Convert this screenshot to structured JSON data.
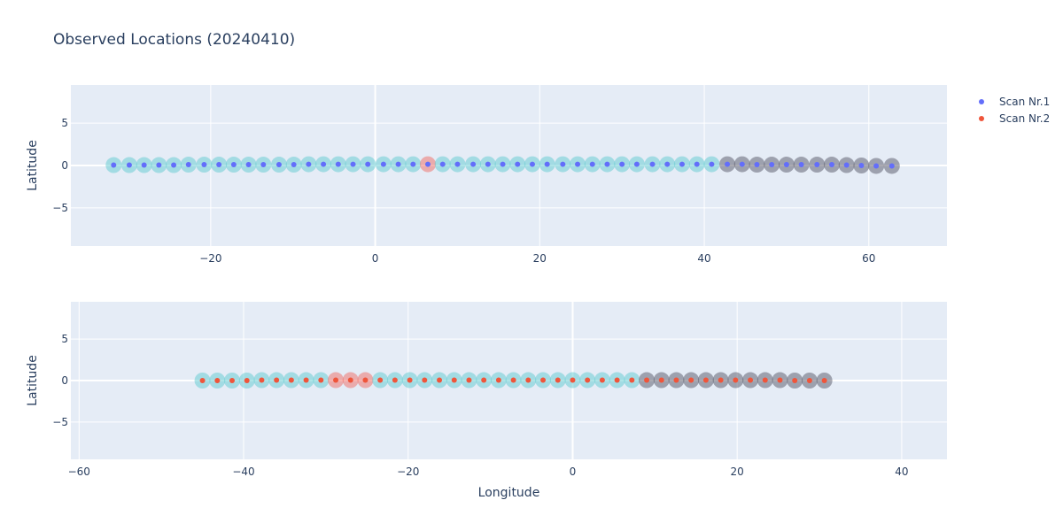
{
  "chart_data": {
    "type": "scatter",
    "title": "Observed Locations (20240410)",
    "grid": true,
    "legend_placement": "top-right",
    "legend": [
      {
        "name": "Scan Nr.1",
        "color": "#636efa"
      },
      {
        "name": "Scan Nr.2",
        "color": "#ef553b"
      }
    ],
    "halo_colors": {
      "cyan": "#5fc9d0",
      "red": "#ef6a62",
      "dark": "#555566"
    },
    "panels": [
      {
        "xlabel": "",
        "ylabel": "Latitude",
        "xlim": [
          -37,
          69.5
        ],
        "ylim": [
          -9.5,
          9.5
        ],
        "xticks": [
          -20,
          0,
          20,
          40,
          60
        ],
        "yticks": [
          -5,
          0,
          5
        ],
        "point_color": "#636efa",
        "x": [
          -31.8,
          -29.9,
          -28.1,
          -26.3,
          -24.5,
          -22.7,
          -20.8,
          -19.0,
          -17.2,
          -15.4,
          -13.6,
          -11.7,
          -9.9,
          -8.1,
          -6.3,
          -4.5,
          -2.7,
          -0.9,
          1.0,
          2.8,
          4.6,
          6.4,
          8.2,
          10.0,
          11.9,
          13.7,
          15.5,
          17.3,
          19.1,
          20.9,
          22.8,
          24.6,
          26.4,
          28.2,
          30.0,
          31.8,
          33.7,
          35.5,
          37.3,
          39.1,
          40.9,
          42.8,
          44.6,
          46.4,
          48.2,
          50.0,
          51.8,
          53.7,
          55.5,
          57.3,
          59.1,
          60.9,
          62.8
        ],
        "y": [
          0.05,
          0.05,
          0.05,
          0.05,
          0.05,
          0.1,
          0.1,
          0.1,
          0.1,
          0.1,
          0.1,
          0.1,
          0.1,
          0.15,
          0.15,
          0.15,
          0.15,
          0.15,
          0.15,
          0.15,
          0.15,
          0.15,
          0.15,
          0.15,
          0.15,
          0.15,
          0.15,
          0.15,
          0.15,
          0.15,
          0.15,
          0.15,
          0.15,
          0.15,
          0.15,
          0.15,
          0.15,
          0.15,
          0.15,
          0.15,
          0.15,
          0.15,
          0.15,
          0.1,
          0.1,
          0.1,
          0.1,
          0.1,
          0.1,
          0.05,
          0.0,
          -0.05,
          -0.05
        ],
        "halo": [
          "cyan",
          "cyan",
          "cyan",
          "cyan",
          "cyan",
          "cyan",
          "cyan",
          "cyan",
          "cyan",
          "cyan",
          "cyan",
          "cyan",
          "cyan",
          "cyan",
          "cyan",
          "cyan",
          "cyan",
          "cyan",
          "cyan",
          "cyan",
          "cyan",
          "red",
          "cyan",
          "cyan",
          "cyan",
          "cyan",
          "cyan",
          "cyan",
          "cyan",
          "cyan",
          "cyan",
          "cyan",
          "cyan",
          "cyan",
          "cyan",
          "cyan",
          "cyan",
          "cyan",
          "cyan",
          "cyan",
          "cyan",
          "dark",
          "dark",
          "dark",
          "dark",
          "dark",
          "dark",
          "dark",
          "dark",
          "dark",
          "dark",
          "dark",
          "dark"
        ]
      },
      {
        "xlabel": "Longitude",
        "ylabel": "Latitude",
        "xlim": [
          -61,
          45.5
        ],
        "ylim": [
          -9.5,
          9.5
        ],
        "xticks": [
          -60,
          -40,
          -20,
          0,
          20,
          40
        ],
        "yticks": [
          -5,
          0,
          5
        ],
        "point_color": "#ef553b",
        "x": [
          -45.0,
          -43.2,
          -41.4,
          -39.6,
          -37.8,
          -36.0,
          -34.2,
          -32.4,
          -30.6,
          -28.8,
          -27.0,
          -25.2,
          -23.4,
          -21.6,
          -19.8,
          -18.0,
          -16.2,
          -14.4,
          -12.6,
          -10.8,
          -9.0,
          -7.2,
          -5.4,
          -3.6,
          -1.8,
          0.0,
          1.8,
          3.6,
          5.4,
          7.2,
          9.0,
          10.8,
          12.6,
          14.4,
          16.2,
          18.0,
          19.8,
          21.6,
          23.4,
          25.2,
          27.0,
          28.8,
          30.6
        ],
        "y": [
          0.0,
          0.0,
          0.0,
          0.0,
          0.05,
          0.05,
          0.05,
          0.05,
          0.05,
          0.05,
          0.05,
          0.05,
          0.05,
          0.05,
          0.05,
          0.05,
          0.05,
          0.05,
          0.05,
          0.05,
          0.05,
          0.05,
          0.05,
          0.05,
          0.05,
          0.05,
          0.05,
          0.05,
          0.05,
          0.05,
          0.05,
          0.05,
          0.05,
          0.05,
          0.05,
          0.05,
          0.05,
          0.05,
          0.05,
          0.05,
          0.0,
          0.0,
          0.0
        ],
        "halo": [
          "cyan",
          "cyan",
          "cyan",
          "cyan",
          "cyan",
          "cyan",
          "cyan",
          "cyan",
          "cyan",
          "red",
          "red",
          "red",
          "cyan",
          "cyan",
          "cyan",
          "cyan",
          "cyan",
          "cyan",
          "cyan",
          "cyan",
          "cyan",
          "cyan",
          "cyan",
          "cyan",
          "cyan",
          "cyan",
          "cyan",
          "cyan",
          "cyan",
          "cyan",
          "dark",
          "dark",
          "dark",
          "dark",
          "dark",
          "dark",
          "dark",
          "dark",
          "dark",
          "dark",
          "dark",
          "dark",
          "dark"
        ]
      }
    ]
  }
}
